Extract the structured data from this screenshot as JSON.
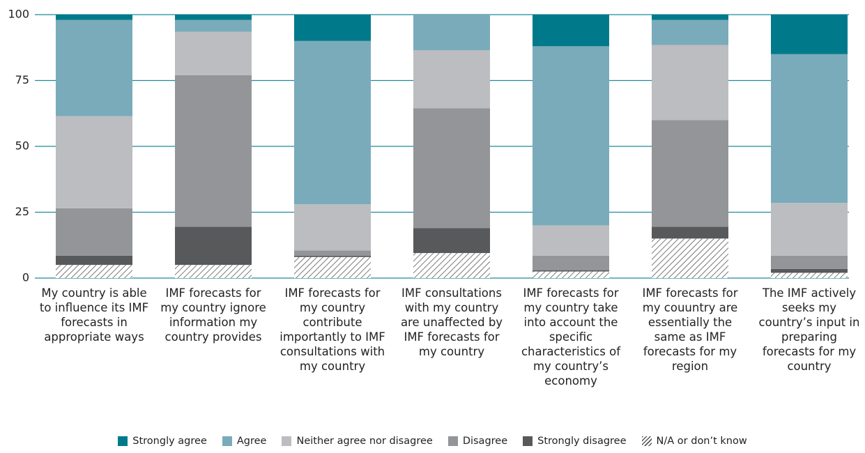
{
  "chart_data": {
    "type": "stacked_bar",
    "categories": [
      "My country is able to influence its IMF forecasts in appropriate ways",
      "IMF forecasts for my country ignore information my country provides",
      "IMF forecasts for my country contribute importantly to IMF consultations with my country",
      "IMF consultations with my country are unaffected by IMF forecasts for my country",
      "IMF forecasts for my country take into account the specific characteristics of my country’s economy",
      "IMF forecasts for my couuntry are essentially the same as IMF forecasts for my region",
      "The IMF actively seeks my country’s input in preparing forecasts for my country"
    ],
    "series": [
      {
        "name": "Strongly agree",
        "color": "#007a8a",
        "values": [
          2,
          2,
          10,
          0,
          12,
          2,
          15
        ]
      },
      {
        "name": "Agree",
        "color": "#7aabbb",
        "values": [
          36.5,
          4.5,
          62,
          13.5,
          68,
          9.5,
          56.5
        ]
      },
      {
        "name": "Neither agree nor disagree",
        "color": "#bcbdc1",
        "values": [
          35,
          16.5,
          17.5,
          22,
          11.5,
          28.5,
          20
        ]
      },
      {
        "name": "Disagree",
        "color": "#939598",
        "values": [
          18,
          57.5,
          2,
          45.5,
          5.5,
          40.5,
          5
        ]
      },
      {
        "name": "Strongly disagree",
        "color": "#58595b",
        "values": [
          3.5,
          14.5,
          0.5,
          9.5,
          0.5,
          4.5,
          1.5
        ]
      },
      {
        "name": "N/A or don’t know",
        "color": "#58595b",
        "hatch": true,
        "values": [
          5,
          5,
          8,
          9.5,
          2.5,
          15,
          2
        ]
      }
    ],
    "ylim": [
      0,
      100
    ],
    "yticks": [
      0,
      25,
      50,
      75,
      100
    ],
    "grid": true
  }
}
